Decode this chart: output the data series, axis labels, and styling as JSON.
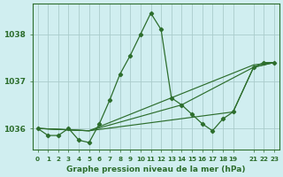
{
  "background_color": "#d0eef0",
  "grid_color": "#aacccc",
  "line_color": "#2d6e2d",
  "title": "Graphe pression niveau de la mer (hPa)",
  "xlim": [
    -0.5,
    23.5
  ],
  "ylim": [
    1035.55,
    1038.65
  ],
  "yticks": [
    1036,
    1037,
    1038
  ],
  "xticks": [
    0,
    1,
    2,
    3,
    4,
    5,
    6,
    7,
    8,
    9,
    10,
    11,
    12,
    13,
    14,
    15,
    16,
    17,
    18,
    19,
    21,
    22,
    23
  ],
  "xtick_labels": [
    "0",
    "1",
    "2",
    "3",
    "4",
    "5",
    "6",
    "7",
    "8",
    "9",
    "10",
    "11",
    "12",
    "13",
    "14",
    "15",
    "16",
    "17",
    "18",
    "19",
    "21",
    "22",
    "23"
  ],
  "series": [
    {
      "x": [
        0,
        1,
        2,
        3,
        4,
        5,
        6,
        7,
        8,
        9,
        10,
        11,
        12,
        13,
        14,
        15,
        16,
        17,
        18,
        19,
        21,
        22,
        23
      ],
      "y": [
        1036.0,
        1035.85,
        1035.85,
        1036.0,
        1035.75,
        1035.7,
        1036.1,
        1036.6,
        1037.15,
        1037.55,
        1038.0,
        1038.45,
        1038.1,
        1036.65,
        1036.5,
        1036.3,
        1036.1,
        1035.95,
        1036.2,
        1036.35,
        1037.3,
        1037.4,
        1037.4
      ],
      "marker": true
    },
    {
      "x": [
        0,
        5,
        21,
        23
      ],
      "y": [
        1036.0,
        1035.95,
        1037.35,
        1037.4
      ],
      "marker": false
    },
    {
      "x": [
        0,
        5,
        14,
        21,
        23
      ],
      "y": [
        1036.0,
        1035.95,
        1036.5,
        1037.3,
        1037.4
      ],
      "marker": false
    },
    {
      "x": [
        0,
        5,
        19,
        21,
        23
      ],
      "y": [
        1036.0,
        1035.95,
        1036.35,
        1037.3,
        1037.4
      ],
      "marker": false
    }
  ]
}
